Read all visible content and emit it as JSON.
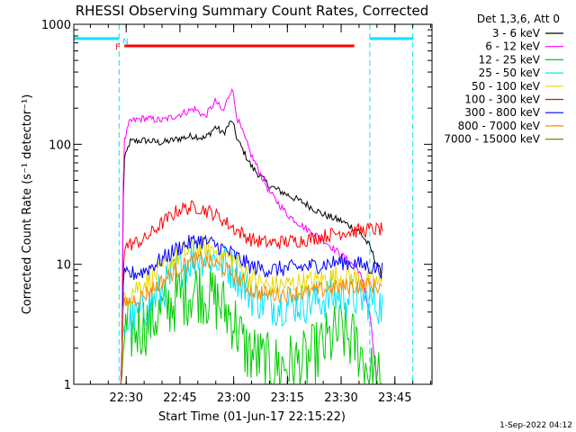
{
  "chart_data": {
    "type": "line",
    "title": "RHESSI Observing Summary Count Rates, Corrected",
    "xlabel": "Start Time (01-Jun-17 22:15:22)",
    "ylabel": "Corrected Count Rate (s⁻¹ detector⁻¹)",
    "y_scale": "log",
    "ylim": [
      1,
      1000
    ],
    "xlim": [
      "22:15:22",
      "23:55:22"
    ],
    "x_ticks": [
      "22:30",
      "22:45",
      "23:00",
      "23:15",
      "23:30",
      "23:45"
    ],
    "y_ticks": [
      "1",
      "10",
      "100",
      "1000"
    ],
    "legend_title": "Det 1,3,6, Att 0",
    "legend_position": "top-right",
    "footer": "1-Sep-2022 04:12",
    "flag_labels": [
      {
        "text": "F",
        "color": "#ff0000"
      },
      {
        "text": "N",
        "color": "#00e5ff"
      }
    ],
    "flare_interval": {
      "start": "22:29:30",
      "end": "23:33:40",
      "color": "#ff0000"
    },
    "night_intervals": [
      {
        "start": "22:15:22",
        "end": "22:28:00",
        "color": "#00e5ff"
      },
      {
        "start": "23:38:00",
        "end": "23:50:00",
        "color": "#00e5ff"
      }
    ],
    "vertical_markers": [
      "22:28:00",
      "23:38:00",
      "23:50:00"
    ],
    "data_window": [
      "22:22:30",
      "23:41:30"
    ],
    "series": [
      {
        "name": "3 - 6 keV",
        "color": "#000000",
        "points": [
          [
            "22:22:30",
            1
          ],
          [
            "22:28:45",
            1
          ],
          [
            "22:29:15",
            70
          ],
          [
            "22:31:00",
            105
          ],
          [
            "22:35:00",
            108
          ],
          [
            "22:40:00",
            103
          ],
          [
            "22:45:00",
            112
          ],
          [
            "22:49:00",
            118
          ],
          [
            "22:52:00",
            112
          ],
          [
            "22:55:00",
            140
          ],
          [
            "22:57:00",
            122
          ],
          [
            "22:59:30",
            158
          ],
          [
            "23:01:00",
            110
          ],
          [
            "23:05:00",
            65
          ],
          [
            "23:10:00",
            45
          ],
          [
            "23:15:00",
            38
          ],
          [
            "23:20:00",
            32
          ],
          [
            "23:25:00",
            26
          ],
          [
            "23:30:00",
            23
          ],
          [
            "23:35:00",
            19
          ],
          [
            "23:38:00",
            14
          ],
          [
            "23:40:00",
            10
          ],
          [
            "23:41:30",
            8
          ]
        ]
      },
      {
        "name": "6 - 12 keV",
        "color": "#ff00ff",
        "points": [
          [
            "22:22:30",
            1
          ],
          [
            "22:28:45",
            1
          ],
          [
            "22:29:15",
            100
          ],
          [
            "22:31:00",
            155
          ],
          [
            "22:35:00",
            165
          ],
          [
            "22:40:00",
            158
          ],
          [
            "22:45:00",
            178
          ],
          [
            "22:49:00",
            198
          ],
          [
            "22:52:00",
            170
          ],
          [
            "22:55:00",
            230
          ],
          [
            "22:57:00",
            185
          ],
          [
            "22:59:30",
            300
          ],
          [
            "23:01:00",
            165
          ],
          [
            "23:05:00",
            80
          ],
          [
            "23:10:00",
            40
          ],
          [
            "23:15:00",
            26
          ],
          [
            "23:20:00",
            20
          ],
          [
            "23:25:00",
            16
          ],
          [
            "23:30:00",
            12
          ],
          [
            "23:35:00",
            9
          ],
          [
            "23:38:00",
            4
          ],
          [
            "23:40:00",
            1
          ]
        ]
      },
      {
        "name": "12 - 25 keV",
        "color": "#00cc00",
        "points": [
          [
            "22:22:30",
            1
          ],
          [
            "22:28:45",
            1
          ],
          [
            "22:29:15",
            2.5
          ],
          [
            "22:35:00",
            3.2
          ],
          [
            "22:40:00",
            4
          ],
          [
            "22:45:00",
            5.5
          ],
          [
            "22:50:00",
            6.2
          ],
          [
            "22:55:00",
            5
          ],
          [
            "23:00:00",
            3.5
          ],
          [
            "23:03:00",
            2
          ],
          [
            "23:10:00",
            1.4
          ],
          [
            "23:20:00",
            1.5
          ],
          [
            "23:30:00",
            2.8
          ],
          [
            "23:35:00",
            2
          ],
          [
            "23:38:00",
            1.2
          ],
          [
            "23:41:30",
            1
          ]
        ]
      },
      {
        "name": "25 - 50 keV",
        "color": "#00e5ff",
        "points": [
          [
            "22:22:30",
            1
          ],
          [
            "22:28:45",
            1
          ],
          [
            "22:29:15",
            3
          ],
          [
            "22:35:00",
            4.2
          ],
          [
            "22:40:00",
            6
          ],
          [
            "22:45:00",
            9.5
          ],
          [
            "22:50:00",
            12
          ],
          [
            "22:55:00",
            11
          ],
          [
            "23:00:00",
            9
          ],
          [
            "23:05:00",
            5.5
          ],
          [
            "23:10:00",
            4.6
          ],
          [
            "23:20:00",
            4.8
          ],
          [
            "23:30:00",
            5.5
          ],
          [
            "23:35:00",
            5.2
          ],
          [
            "23:38:00",
            5
          ],
          [
            "23:41:30",
            4.5
          ]
        ]
      },
      {
        "name": "50 - 100 keV",
        "color": "#e8d800",
        "points": [
          [
            "22:22:30",
            1
          ],
          [
            "22:28:45",
            1
          ],
          [
            "22:29:15",
            5.5
          ],
          [
            "22:35:00",
            7
          ],
          [
            "22:40:00",
            9
          ],
          [
            "22:45:00",
            12
          ],
          [
            "22:50:00",
            14
          ],
          [
            "22:55:00",
            13
          ],
          [
            "23:00:00",
            11
          ],
          [
            "23:05:00",
            7.5
          ],
          [
            "23:10:00",
            6.5
          ],
          [
            "23:20:00",
            7
          ],
          [
            "23:30:00",
            8
          ],
          [
            "23:35:00",
            7.5
          ],
          [
            "23:38:00",
            7.2
          ],
          [
            "23:41:30",
            7
          ]
        ]
      },
      {
        "name": "100 - 300 keV",
        "color": "#ff0000",
        "points": [
          [
            "22:22:30",
            1
          ],
          [
            "22:28:45",
            1
          ],
          [
            "22:29:15",
            14
          ],
          [
            "22:35:00",
            16
          ],
          [
            "22:40:00",
            22
          ],
          [
            "22:45:00",
            29
          ],
          [
            "22:50:00",
            30
          ],
          [
            "22:55:00",
            26
          ],
          [
            "23:00:00",
            20
          ],
          [
            "23:05:00",
            16
          ],
          [
            "23:10:00",
            15
          ],
          [
            "23:20:00",
            16
          ],
          [
            "23:30:00",
            18.5
          ],
          [
            "23:35:00",
            19
          ],
          [
            "23:38:00",
            19.5
          ],
          [
            "23:41:30",
            19.5
          ]
        ]
      },
      {
        "name": "300 - 800 keV",
        "color": "#0000ff",
        "points": [
          [
            "22:22:30",
            1
          ],
          [
            "22:28:45",
            1
          ],
          [
            "22:29:15",
            8
          ],
          [
            "22:35:00",
            8.8
          ],
          [
            "22:40:00",
            11
          ],
          [
            "22:45:00",
            14
          ],
          [
            "22:50:00",
            16
          ],
          [
            "22:55:00",
            14.5
          ],
          [
            "23:00:00",
            12
          ],
          [
            "23:05:00",
            9.5
          ],
          [
            "23:10:00",
            9
          ],
          [
            "23:20:00",
            9.5
          ],
          [
            "23:30:00",
            10.5
          ],
          [
            "23:35:00",
            10
          ],
          [
            "23:38:00",
            9.5
          ],
          [
            "23:41:30",
            9
          ]
        ]
      },
      {
        "name": "800 - 7000 keV",
        "color": "#ff8800",
        "points": [
          [
            "22:22:30",
            1
          ],
          [
            "22:28:45",
            1
          ],
          [
            "22:29:15",
            4.7
          ],
          [
            "22:35:00",
            5.5
          ],
          [
            "22:40:00",
            7.2
          ],
          [
            "22:45:00",
            9.5
          ],
          [
            "22:50:00",
            11
          ],
          [
            "22:55:00",
            10
          ],
          [
            "23:00:00",
            8.2
          ],
          [
            "23:05:00",
            6
          ],
          [
            "23:10:00",
            5.6
          ],
          [
            "23:20:00",
            5.8
          ],
          [
            "23:30:00",
            6.5
          ],
          [
            "23:35:00",
            6.6
          ],
          [
            "23:38:00",
            6.7
          ],
          [
            "23:41:30",
            6.5
          ]
        ]
      },
      {
        "name": "7000 - 15000 keV",
        "color": "#808000",
        "points": []
      }
    ]
  }
}
